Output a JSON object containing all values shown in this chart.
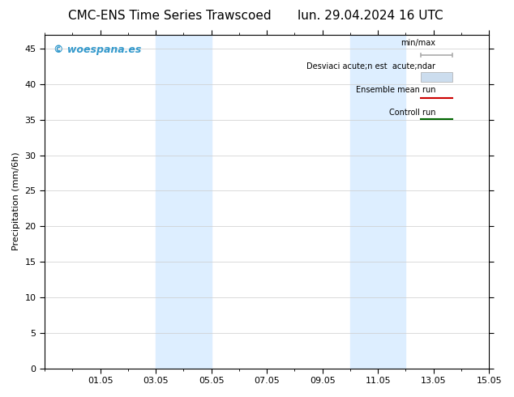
{
  "title_left": "CMC-ENS Time Series Trawscoed",
  "title_right": "lun. 29.04.2024 16 UTC",
  "ylabel": "Precipitation (mm/6h)",
  "ylim": [
    0,
    47
  ],
  "yticks": [
    0,
    5,
    10,
    15,
    20,
    25,
    30,
    35,
    40,
    45
  ],
  "xlim": [
    0,
    16
  ],
  "xtick_labels": [
    "01.05",
    "03.05",
    "05.05",
    "07.05",
    "09.05",
    "11.05",
    "13.05",
    "15.05"
  ],
  "xtick_positions": [
    2,
    4,
    6,
    8,
    10,
    12,
    14,
    16
  ],
  "shaded_bands": [
    {
      "x_start": 4.0,
      "x_end": 6.0
    },
    {
      "x_start": 11.0,
      "x_end": 13.0
    }
  ],
  "shaded_color": "#ddeeff",
  "watermark_text": "© woespana.es",
  "watermark_color": "#3399cc",
  "legend_line1_label": "min/max",
  "legend_line1_color": "#aaaaaa",
  "legend_line2_label": "Desviaci acute;n est  acute;ndar",
  "legend_line2_color": "#ccddee",
  "legend_line3_label": "Ensemble mean run",
  "legend_line3_color": "#cc0000",
  "legend_line4_label": "Controll run",
  "legend_line4_color": "#006600",
  "background_color": "#ffffff",
  "plot_bg_color": "#ffffff",
  "grid_color": "#cccccc",
  "border_color": "#000000",
  "font_size_title": 11,
  "font_size_axis": 8,
  "font_size_tick": 8,
  "font_size_legend": 7,
  "font_size_watermark": 9
}
